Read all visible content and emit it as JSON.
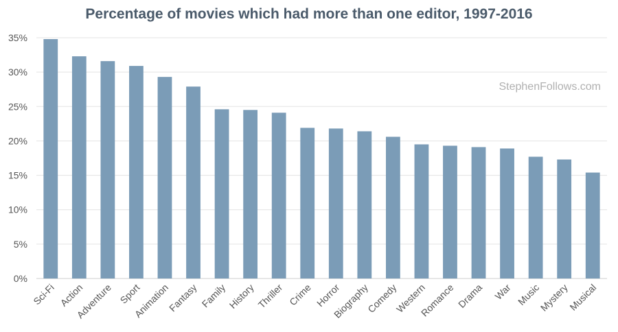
{
  "chart_data": {
    "type": "bar",
    "title": "Percentage of movies which had more than one editor, 1997-2016",
    "watermark": "StephenFollows.com",
    "xlabel": "",
    "ylabel": "",
    "ylim": [
      0,
      35
    ],
    "yticks": [
      0,
      5,
      10,
      15,
      20,
      25,
      30,
      35
    ],
    "ytick_labels": [
      "0%",
      "5%",
      "10%",
      "15%",
      "20%",
      "25%",
      "30%",
      "35%"
    ],
    "grid": true,
    "bar_color": "#7b9cb7",
    "categories": [
      "Sci-Fi",
      "Action",
      "Adventure",
      "Sport",
      "Animation",
      "Fantasy",
      "Family",
      "History",
      "Thriller",
      "Crime",
      "Horror",
      "Biography",
      "Comedy",
      "Western",
      "Romance",
      "Drama",
      "War",
      "Music",
      "Mystery",
      "Musical"
    ],
    "values": [
      34.8,
      32.3,
      31.6,
      30.9,
      29.3,
      27.9,
      24.6,
      24.5,
      24.1,
      21.9,
      21.8,
      21.4,
      20.6,
      19.5,
      19.3,
      19.1,
      18.9,
      17.7,
      17.3,
      15.4
    ]
  }
}
